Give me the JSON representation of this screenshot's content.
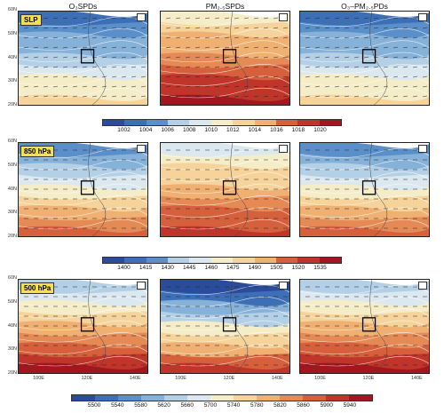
{
  "columns": [
    "O₃SPDs",
    "PM₂.₅SPDs",
    "O₃–PM₂.₅PDs"
  ],
  "rows": [
    {
      "level": "SLP",
      "colorbar": [
        "1002",
        "1004",
        "1006",
        "1008",
        "1010",
        "1012",
        "1014",
        "1016",
        "1018",
        "1020"
      ],
      "panels": [
        {
          "warm": 0.35
        },
        {
          "warm": 0.85
        },
        {
          "warm": 0.45
        }
      ]
    },
    {
      "level": "850 hPa",
      "colorbar": [
        "1400",
        "1415",
        "1430",
        "1445",
        "1460",
        "1475",
        "1490",
        "1505",
        "1520",
        "1535"
      ],
      "panels": [
        {
          "warm": 0.5
        },
        {
          "warm": 0.7
        },
        {
          "warm": 0.55
        }
      ]
    },
    {
      "level": "500 hPa",
      "colorbar": [
        "5500",
        "5540",
        "5580",
        "5620",
        "5660",
        "5700",
        "5740",
        "5780",
        "5820",
        "5860",
        "5900",
        "5940"
      ],
      "panels": [
        {
          "warm": 0.6
        },
        {
          "warm": 0.55
        },
        {
          "warm": 0.6
        }
      ]
    }
  ],
  "lat_labels": [
    "60N",
    "50N",
    "40N",
    "30N",
    "20N"
  ],
  "lon_labels": [
    "100E",
    "120E",
    "140E"
  ],
  "colors": {
    "cmap": [
      "#2b4c9b",
      "#3d6fb6",
      "#5b8fc9",
      "#86b1d9",
      "#b4d0e6",
      "#dbe8f0",
      "#f5ecc8",
      "#f6d39a",
      "#f0b072",
      "#e58a55",
      "#d65f3c",
      "#c0352a",
      "#a3151f"
    ]
  }
}
